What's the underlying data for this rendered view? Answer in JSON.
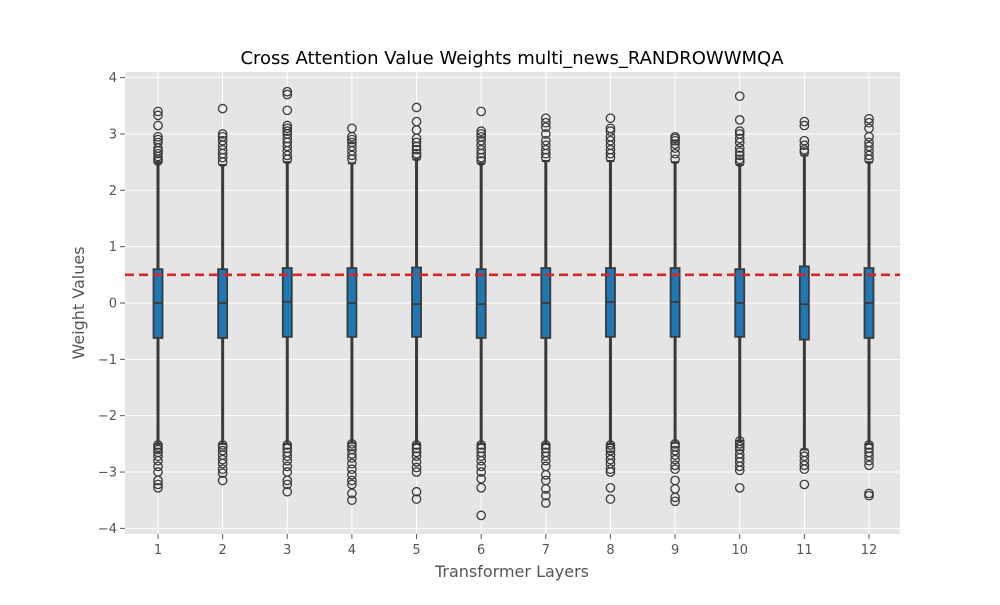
{
  "chart_data": {
    "type": "box",
    "title": "Cross Attention Value Weights multi_news_RANDROWWMQA",
    "xlabel": "Transformer Layers",
    "ylabel": "Weight Values",
    "ylim": [
      -4.1,
      4.1
    ],
    "y_ticks": [
      -4,
      -3,
      -2,
      -1,
      0,
      1,
      2,
      3,
      4
    ],
    "y_tick_labels": [
      "−4",
      "−3",
      "−2",
      "−1",
      "0",
      "1",
      "2",
      "3",
      "4"
    ],
    "grid": true,
    "categories": [
      "1",
      "2",
      "3",
      "4",
      "5",
      "6",
      "7",
      "8",
      "9",
      "10",
      "11",
      "12"
    ],
    "reference_line": {
      "y": 0.5,
      "color": "#d62728",
      "style": "dashed"
    },
    "box_color": "#1f77b4",
    "boxes": [
      {
        "q1": -0.62,
        "median": 0.0,
        "q3": 0.6,
        "whisker_low": -2.5,
        "whisker_high": 2.5,
        "outliers": [
          3.4,
          3.33,
          3.15,
          2.95,
          2.9,
          2.85,
          2.75,
          2.7,
          2.65,
          2.6,
          2.55,
          2.52,
          -2.52,
          -2.56,
          -2.6,
          -2.65,
          -2.72,
          -2.8,
          -2.9,
          -3.0,
          -3.15,
          -3.22,
          -3.28
        ]
      },
      {
        "q1": -0.62,
        "median": 0.0,
        "q3": 0.6,
        "whisker_low": -2.5,
        "whisker_high": 2.45,
        "outliers": [
          3.45,
          3.0,
          2.95,
          2.88,
          2.8,
          2.72,
          2.65,
          2.58,
          2.5,
          -2.52,
          -2.56,
          -2.62,
          -2.7,
          -2.78,
          -2.85,
          -2.95,
          -3.02,
          -3.15
        ]
      },
      {
        "q1": -0.6,
        "median": 0.02,
        "q3": 0.62,
        "whisker_low": -2.5,
        "whisker_high": 2.5,
        "outliers": [
          3.75,
          3.7,
          3.42,
          3.15,
          3.1,
          3.05,
          3.0,
          2.92,
          2.85,
          2.78,
          2.7,
          2.62,
          2.55,
          -2.52,
          -2.58,
          -2.65,
          -2.72,
          -2.8,
          -2.9,
          -3.0,
          -3.15,
          -3.22,
          -3.35
        ]
      },
      {
        "q1": -0.6,
        "median": 0.0,
        "q3": 0.62,
        "whisker_low": -2.48,
        "whisker_high": 2.48,
        "outliers": [
          3.1,
          2.95,
          2.9,
          2.85,
          2.78,
          2.7,
          2.62,
          2.55,
          -2.5,
          -2.55,
          -2.6,
          -2.68,
          -2.75,
          -2.85,
          -2.95,
          -3.05,
          -3.15,
          -3.22,
          -3.38,
          -3.5
        ]
      },
      {
        "q1": -0.6,
        "median": -0.02,
        "q3": 0.63,
        "whisker_low": -2.5,
        "whisker_high": 2.55,
        "outliers": [
          3.47,
          3.22,
          3.07,
          2.92,
          2.85,
          2.78,
          2.72,
          2.65,
          2.6,
          -2.52,
          -2.58,
          -2.65,
          -2.72,
          -2.82,
          -2.92,
          -3.0,
          -3.35,
          -3.48
        ]
      },
      {
        "q1": -0.62,
        "median": -0.02,
        "q3": 0.6,
        "whisker_low": -2.5,
        "whisker_high": 2.48,
        "outliers": [
          3.4,
          3.05,
          3.0,
          2.95,
          2.88,
          2.8,
          2.72,
          2.65,
          2.58,
          2.52,
          -2.52,
          -2.58,
          -2.65,
          -2.72,
          -2.8,
          -2.9,
          -3.0,
          -3.12,
          -3.28,
          -3.77
        ]
      },
      {
        "q1": -0.62,
        "median": 0.0,
        "q3": 0.62,
        "whisker_low": -2.5,
        "whisker_high": 2.52,
        "outliers": [
          3.28,
          3.2,
          3.12,
          3.0,
          2.88,
          2.8,
          2.72,
          2.65,
          2.58,
          -2.52,
          -2.58,
          -2.65,
          -2.72,
          -2.8,
          -2.9,
          -3.05,
          -3.15,
          -3.3,
          -3.42,
          -3.55
        ]
      },
      {
        "q1": -0.6,
        "median": 0.02,
        "q3": 0.62,
        "whisker_low": -2.5,
        "whisker_high": 2.52,
        "outliers": [
          3.28,
          3.1,
          3.05,
          2.95,
          2.88,
          2.8,
          2.72,
          2.65,
          2.58,
          -2.52,
          -2.58,
          -2.62,
          -2.7,
          -2.78,
          -2.85,
          -2.95,
          -3.0,
          -3.28,
          -3.48
        ]
      },
      {
        "q1": -0.6,
        "median": 0.02,
        "q3": 0.62,
        "whisker_low": -2.48,
        "whisker_high": 2.5,
        "outliers": [
          2.95,
          2.92,
          2.88,
          2.82,
          2.75,
          2.65,
          2.55,
          -2.5,
          -2.55,
          -2.62,
          -2.7,
          -2.78,
          -2.88,
          -2.95,
          -3.15,
          -3.3,
          -3.45,
          -3.52
        ]
      },
      {
        "q1": -0.6,
        "median": 0.0,
        "q3": 0.6,
        "whisker_low": -2.45,
        "whisker_high": 2.45,
        "outliers": [
          3.67,
          3.25,
          3.05,
          3.0,
          2.92,
          2.85,
          2.75,
          2.68,
          2.62,
          2.55,
          2.5,
          -2.45,
          -2.5,
          -2.55,
          -2.6,
          -2.68,
          -2.75,
          -2.82,
          -2.9,
          -2.97,
          -3.28
        ]
      },
      {
        "q1": -0.65,
        "median": -0.02,
        "q3": 0.65,
        "whisker_low": -2.6,
        "whisker_high": 2.62,
        "outliers": [
          3.22,
          3.15,
          2.88,
          2.8,
          2.72,
          2.68,
          -2.65,
          -2.72,
          -2.8,
          -2.88,
          -2.95,
          -3.22
        ]
      },
      {
        "q1": -0.62,
        "median": 0.0,
        "q3": 0.62,
        "whisker_low": -2.5,
        "whisker_high": 2.5,
        "outliers": [
          3.27,
          3.2,
          3.1,
          2.95,
          2.85,
          2.78,
          2.7,
          2.62,
          2.55,
          -2.52,
          -2.58,
          -2.65,
          -2.72,
          -2.8,
          -2.88,
          -3.38,
          -3.42
        ]
      }
    ]
  }
}
